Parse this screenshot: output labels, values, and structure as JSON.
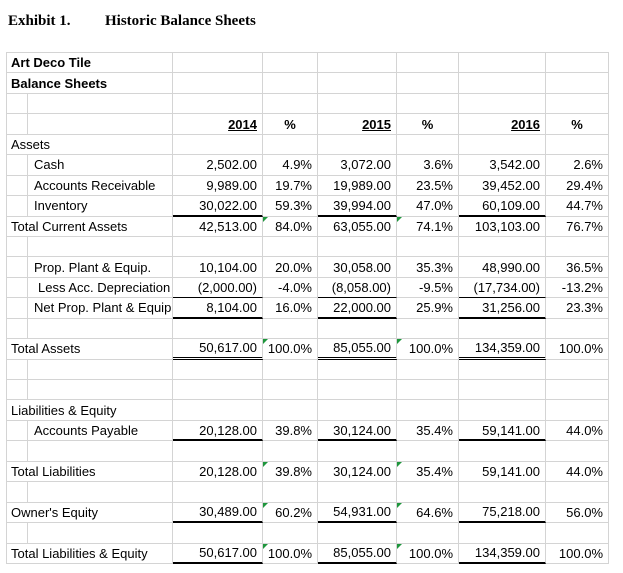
{
  "title": {
    "exhibit": "Exhibit 1.",
    "name": "Historic Balance Sheets"
  },
  "colors": {
    "gridline": "#d4d4d4",
    "accounting_border": "#000000",
    "indicator_green": "#1e963c"
  },
  "sheet": {
    "year_headers": [
      "2014",
      "%",
      "2015",
      "%",
      "2016",
      "%"
    ],
    "rows": [
      {
        "type": "label",
        "bold": true,
        "label": "Art Deco Tile"
      },
      {
        "type": "label",
        "bold": true,
        "label": "Balance Sheets"
      },
      {
        "type": "empty"
      },
      {
        "type": "header"
      },
      {
        "type": "label",
        "label": "Assets"
      },
      {
        "type": "detail",
        "label": "Cash",
        "values": [
          "2,502.00",
          "4.9%",
          "3,072.00",
          "3.6%",
          "3,542.00",
          "2.6%"
        ]
      },
      {
        "type": "detail",
        "label": "Accounts Receivable",
        "values": [
          "9,989.00",
          "19.7%",
          "19,989.00",
          "23.5%",
          "39,452.00",
          "29.4%"
        ]
      },
      {
        "type": "detail",
        "label": "Inventory",
        "border": "medium",
        "values": [
          "30,022.00",
          "59.3%",
          "39,994.00",
          "47.0%",
          "60,109.00",
          "44.7%"
        ]
      },
      {
        "type": "label",
        "label": "Total Current Assets",
        "indicators": true,
        "values": [
          "42,513.00",
          "84.0%",
          "63,055.00",
          "74.1%",
          "103,103.00",
          "76.7%"
        ]
      },
      {
        "type": "empty"
      },
      {
        "type": "detail",
        "label": "Prop. Plant & Equip.",
        "values": [
          "10,104.00",
          "20.0%",
          "30,058.00",
          "35.3%",
          "48,990.00",
          "36.5%"
        ]
      },
      {
        "type": "detail",
        "label": "Less Acc. Depreciation",
        "indent": 2,
        "border": "thin",
        "values": [
          "(2,000.00)",
          "-4.0%",
          "(8,058.00)",
          "-9.5%",
          "(17,734.00)",
          "-13.2%"
        ]
      },
      {
        "type": "detail",
        "label": "Net Prop. Plant & Equip",
        "border": "medium",
        "values": [
          "8,104.00",
          "16.0%",
          "22,000.00",
          "25.9%",
          "31,256.00",
          "23.3%"
        ]
      },
      {
        "type": "empty"
      },
      {
        "type": "label",
        "label": "Total Assets",
        "border": "double",
        "indicators": true,
        "values": [
          "50,617.00",
          "100.0%",
          "85,055.00",
          "100.0%",
          "134,359.00",
          "100.0%"
        ]
      },
      {
        "type": "empty"
      },
      {
        "type": "empty"
      },
      {
        "type": "label",
        "label": "Liabilities & Equity"
      },
      {
        "type": "detail",
        "label": "Accounts Payable",
        "border": "medium",
        "values": [
          "20,128.00",
          "39.8%",
          "30,124.00",
          "35.4%",
          "59,141.00",
          "44.0%"
        ]
      },
      {
        "type": "empty"
      },
      {
        "type": "label",
        "label": "Total Liabilities",
        "indicators": true,
        "values": [
          "20,128.00",
          "39.8%",
          "30,124.00",
          "35.4%",
          "59,141.00",
          "44.0%"
        ]
      },
      {
        "type": "empty"
      },
      {
        "type": "label",
        "label": "Owner's Equity",
        "border": "medium",
        "indicators": true,
        "values": [
          "30,489.00",
          "60.2%",
          "54,931.00",
          "64.6%",
          "75,218.00",
          "56.0%"
        ]
      },
      {
        "type": "empty"
      },
      {
        "type": "label",
        "label": "Total Liabilities & Equity",
        "border": "medium",
        "indicators": true,
        "values": [
          "50,617.00",
          "100.0%",
          "85,055.00",
          "100.0%",
          "134,359.00",
          "100.0%"
        ]
      }
    ]
  }
}
